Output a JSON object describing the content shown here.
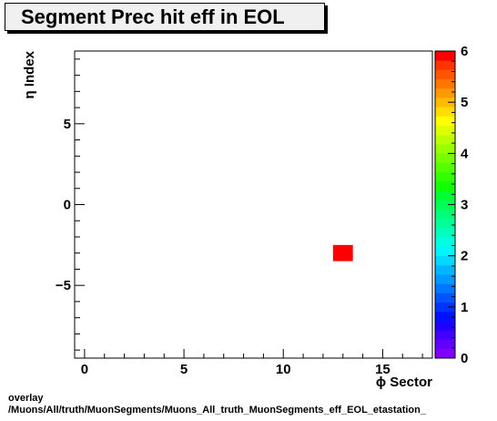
{
  "title": "Segment Prec hit eff in EOL",
  "footer": {
    "line1": "overlay",
    "line2": "/Muons/All/truth/MuonSegments/Muons_All_truth_MuonSegments_eff_EOL_etastation_"
  },
  "chart_data": {
    "type": "heatmap",
    "title": "Segment Prec hit eff in EOL",
    "xlabel": "ϕ Sector",
    "ylabel": "η Index",
    "xlim": [
      -0.5,
      17.5
    ],
    "ylim": [
      -9.5,
      9.5
    ],
    "xticks": [
      0,
      5,
      10,
      15
    ],
    "yticks": [
      -5,
      0,
      5
    ],
    "zlim": [
      0,
      6
    ],
    "zticks": [
      0,
      1,
      2,
      3,
      4,
      5,
      6
    ],
    "cells": [
      {
        "x": 13,
        "y": -3,
        "value": 6
      }
    ],
    "palette": [
      "#7f00ff",
      "#6200ff",
      "#4400ff",
      "#1f00ff",
      "#0011ff",
      "#0033ff",
      "#0055ff",
      "#0077ff",
      "#0099ff",
      "#00b7ff",
      "#00d9ff",
      "#00f5ff",
      "#00ffe1",
      "#00ffbf",
      "#00ff99",
      "#00ff77",
      "#00ff55",
      "#00ff33",
      "#11ff00",
      "#33ff00",
      "#55ff00",
      "#77ff00",
      "#99ff00",
      "#bbff00",
      "#ddff00",
      "#ffff00",
      "#ffdd00",
      "#ffbb00",
      "#ff9900",
      "#ff7700",
      "#ff5500",
      "#ff3300",
      "#ff0000"
    ],
    "grid": false
  }
}
